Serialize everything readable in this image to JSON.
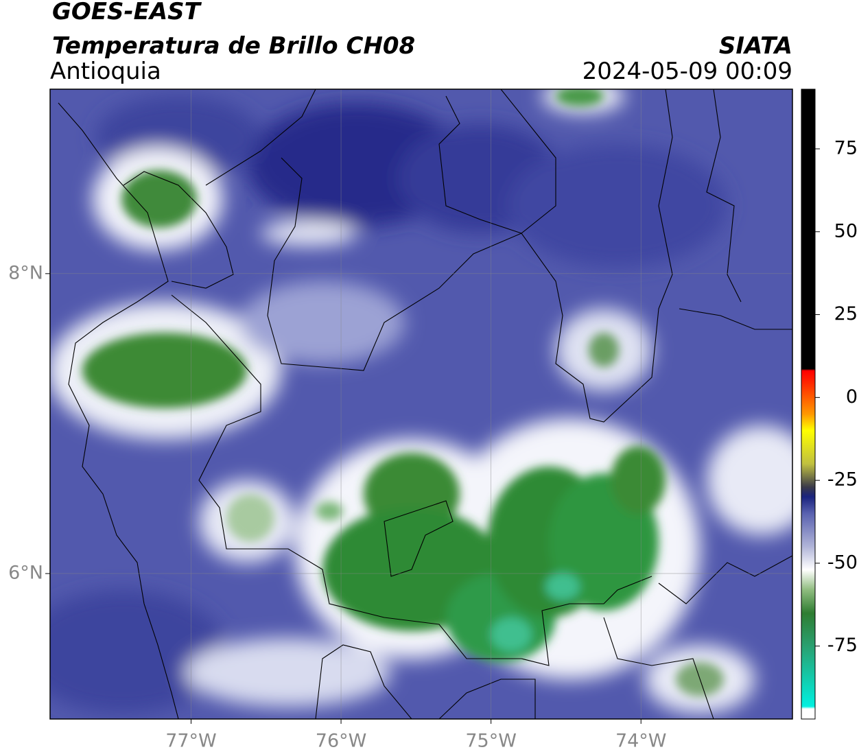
{
  "header": {
    "satellite": "GOES-EAST",
    "product": "Temperatura de Brillo CH08",
    "region": "Antioquia",
    "source": "SIATA",
    "datetime": "2024-05-09 00:09"
  },
  "map": {
    "xlim": [
      -77.94,
      -72.99
    ],
    "ylim": [
      5.03,
      9.23
    ],
    "xticks": [
      {
        "value": -77,
        "label": "77°W"
      },
      {
        "value": -76,
        "label": "76°W"
      },
      {
        "value": -75,
        "label": "75°W"
      },
      {
        "value": -74,
        "label": "74°W"
      }
    ],
    "yticks": [
      {
        "value": 8,
        "label": "8°N"
      },
      {
        "value": 6,
        "label": "6°N"
      }
    ],
    "grid": true
  },
  "colorbar": {
    "lim": [
      -97,
      93
    ],
    "ticks": [
      75,
      50,
      25,
      0,
      -25,
      -50,
      -75
    ]
  }
}
